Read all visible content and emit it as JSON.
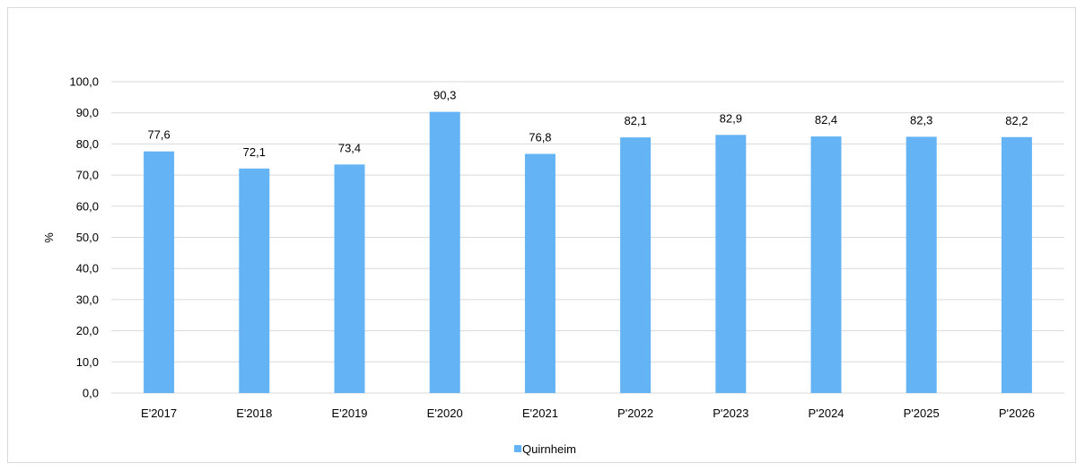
{
  "chart_data": {
    "type": "bar",
    "categories": [
      "E'2017",
      "E'2018",
      "E'2019",
      "E'2020",
      "E'2021",
      "P'2022",
      "P'2023",
      "P'2024",
      "P'2025",
      "P'2026"
    ],
    "series": [
      {
        "name": "Quirnheim",
        "values": [
          77.6,
          72.1,
          73.4,
          90.3,
          76.8,
          82.1,
          82.9,
          82.4,
          82.3,
          82.2
        ],
        "value_labels": [
          "77,6",
          "72,1",
          "73,4",
          "90,3",
          "76,8",
          "82,1",
          "82,9",
          "82,4",
          "82,3",
          "82,2"
        ],
        "color": "#63b3f5"
      }
    ],
    "title": "",
    "xlabel": "",
    "ylabel": "%",
    "ylim": [
      0,
      100
    ],
    "yticks": [
      0,
      10,
      20,
      30,
      40,
      50,
      60,
      70,
      80,
      90,
      100
    ],
    "ytick_labels": [
      "0,0",
      "10,0",
      "20,0",
      "30,0",
      "40,0",
      "50,0",
      "60,0",
      "70,0",
      "80,0",
      "90,0",
      "100,0"
    ],
    "grid": true,
    "gridline_color": "#d9d9d9",
    "legend_position": "bottom"
  }
}
